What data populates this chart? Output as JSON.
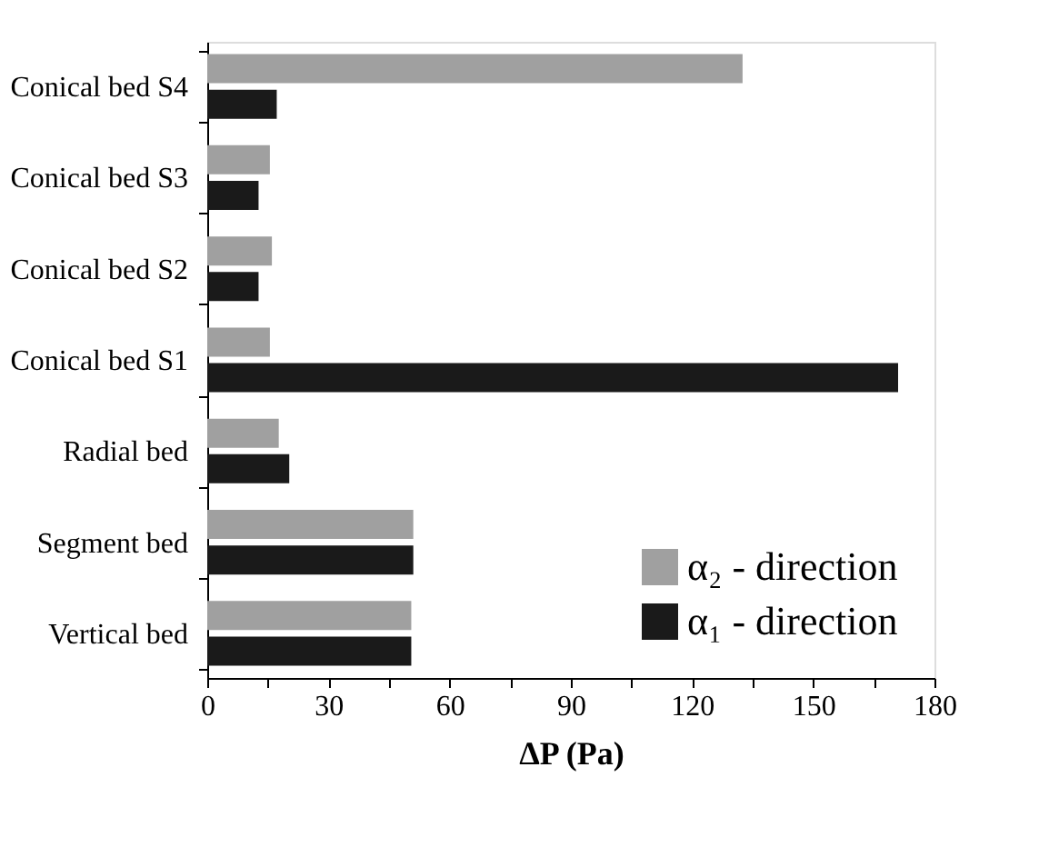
{
  "chart_data": {
    "type": "bar",
    "orientation": "horizontal",
    "xlabel": "ΔP (Pa)",
    "categories": [
      "Conical bed S4",
      "Conical bed S3",
      "Conical bed S2",
      "Conical bed S1",
      "Radial bed",
      "Segment bed",
      "Vertical bed"
    ],
    "series": [
      {
        "name": "α₂ - direction",
        "color": "#a0a0a0",
        "values": [
          132.5,
          15.5,
          16,
          15.5,
          17.7,
          51,
          50.5
        ]
      },
      {
        "name": "α₁ - direction",
        "color": "#1a1a1a",
        "values": [
          17.2,
          12.7,
          12.7,
          171,
          20.3,
          51,
          50.5
        ]
      }
    ],
    "xlim": [
      0,
      180
    ],
    "xticks": [
      0,
      {
        "value": 15,
        "label": null
      },
      30,
      {
        "value": 45,
        "label": null
      },
      60,
      {
        "value": 75,
        "label": null
      },
      90,
      {
        "value": 105,
        "label": null
      },
      120,
      {
        "value": 135,
        "label": null
      },
      150,
      {
        "value": 165,
        "label": null
      },
      180
    ],
    "grid": false,
    "legend": "bottom right"
  }
}
